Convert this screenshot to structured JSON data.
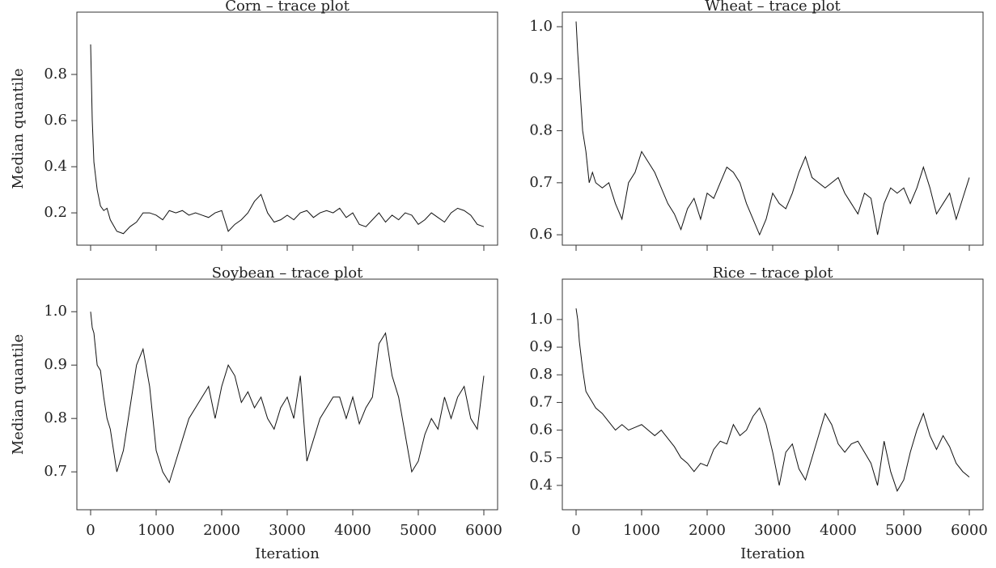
{
  "chart_data": [
    {
      "type": "line",
      "title": "Corn – trace plot",
      "ylabel": "Median quantile",
      "x": [
        0,
        25,
        50,
        100,
        150,
        200,
        250,
        300,
        400,
        500,
        600,
        700,
        800,
        900,
        1000,
        1100,
        1200,
        1300,
        1400,
        1500,
        1600,
        1700,
        1800,
        1900,
        2000,
        2100,
        2200,
        2300,
        2400,
        2500,
        2600,
        2700,
        2800,
        2900,
        3000,
        3100,
        3200,
        3300,
        3400,
        3500,
        3600,
        3700,
        3800,
        3900,
        4000,
        4100,
        4200,
        4300,
        4400,
        4500,
        4600,
        4700,
        4800,
        4900,
        5000,
        5100,
        5200,
        5300,
        5400,
        5500,
        5600,
        5700,
        5800,
        5900,
        6000
      ],
      "series": [
        {
          "color": "#111111",
          "values": [
            0.93,
            0.6,
            0.42,
            0.3,
            0.23,
            0.21,
            0.22,
            0.17,
            0.12,
            0.11,
            0.14,
            0.16,
            0.2,
            0.2,
            0.19,
            0.17,
            0.21,
            0.2,
            0.21,
            0.19,
            0.2,
            0.19,
            0.18,
            0.2,
            0.21,
            0.12,
            0.15,
            0.17,
            0.2,
            0.25,
            0.28,
            0.2,
            0.16,
            0.17,
            0.19,
            0.17,
            0.2,
            0.21,
            0.18,
            0.2,
            0.21,
            0.2,
            0.22,
            0.18,
            0.2,
            0.15,
            0.14,
            0.17,
            0.2,
            0.16,
            0.19,
            0.17,
            0.2,
            0.19,
            0.15,
            0.17,
            0.2,
            0.18,
            0.16,
            0.2,
            0.22,
            0.21,
            0.19,
            0.15,
            0.14
          ]
        }
      ],
      "xlim": [
        -210,
        6210
      ],
      "xticks": [
        0,
        1000,
        2000,
        3000,
        4000,
        5000,
        6000
      ],
      "ylim": [
        0.06,
        1.07
      ],
      "yticks": [
        0.2,
        0.4,
        0.6,
        0.8
      ]
    },
    {
      "type": "line",
      "title": "Wheat – trace plot",
      "x": [
        0,
        25,
        50,
        100,
        150,
        200,
        250,
        300,
        400,
        500,
        600,
        700,
        800,
        900,
        1000,
        1100,
        1200,
        1300,
        1400,
        1500,
        1600,
        1700,
        1800,
        1900,
        2000,
        2100,
        2200,
        2300,
        2400,
        2500,
        2600,
        2700,
        2800,
        2900,
        3000,
        3100,
        3200,
        3300,
        3400,
        3500,
        3600,
        3700,
        3800,
        3900,
        4000,
        4100,
        4200,
        4300,
        4400,
        4500,
        4600,
        4700,
        4800,
        4900,
        5000,
        5100,
        5200,
        5300,
        5400,
        5500,
        5600,
        5700,
        5800,
        5900,
        6000
      ],
      "series": [
        {
          "color": "#111111",
          "values": [
            1.01,
            0.95,
            0.9,
            0.8,
            0.76,
            0.7,
            0.72,
            0.7,
            0.69,
            0.7,
            0.66,
            0.63,
            0.7,
            0.72,
            0.76,
            0.74,
            0.72,
            0.69,
            0.66,
            0.64,
            0.61,
            0.65,
            0.67,
            0.63,
            0.68,
            0.67,
            0.7,
            0.73,
            0.72,
            0.7,
            0.66,
            0.63,
            0.6,
            0.63,
            0.68,
            0.66,
            0.65,
            0.68,
            0.72,
            0.75,
            0.71,
            0.7,
            0.69,
            0.7,
            0.71,
            0.68,
            0.66,
            0.64,
            0.68,
            0.67,
            0.6,
            0.66,
            0.69,
            0.68,
            0.69,
            0.66,
            0.69,
            0.73,
            0.69,
            0.64,
            0.66,
            0.68,
            0.63,
            0.67,
            0.71
          ]
        }
      ],
      "xlim": [
        -210,
        6210
      ],
      "xticks": [
        0,
        1000,
        2000,
        3000,
        4000,
        5000,
        6000
      ],
      "ylim": [
        0.58,
        1.028
      ],
      "yticks": [
        0.6,
        0.7,
        0.8,
        0.9,
        {
          "value": 1,
          "label": "1.0"
        }
      ]
    },
    {
      "type": "line",
      "title": "Soybean – trace plot",
      "ylabel": "Median quantile",
      "xlabel": "Iteration",
      "x": [
        0,
        25,
        50,
        100,
        150,
        200,
        250,
        300,
        400,
        500,
        600,
        700,
        800,
        900,
        1000,
        1100,
        1200,
        1300,
        1400,
        1500,
        1600,
        1700,
        1800,
        1900,
        2000,
        2100,
        2200,
        2300,
        2400,
        2500,
        2600,
        2700,
        2800,
        2900,
        3000,
        3100,
        3200,
        3300,
        3400,
        3500,
        3600,
        3700,
        3800,
        3900,
        4000,
        4100,
        4200,
        4300,
        4400,
        4500,
        4600,
        4700,
        4800,
        4900,
        5000,
        5100,
        5200,
        5300,
        5400,
        5500,
        5600,
        5700,
        5800,
        5900,
        6000
      ],
      "series": [
        {
          "color": "#111111",
          "values": [
            1.0,
            0.97,
            0.96,
            0.9,
            0.89,
            0.84,
            0.8,
            0.78,
            0.7,
            0.74,
            0.82,
            0.9,
            0.93,
            0.86,
            0.74,
            0.7,
            0.68,
            0.72,
            0.76,
            0.8,
            0.82,
            0.84,
            0.86,
            0.8,
            0.86,
            0.9,
            0.88,
            0.83,
            0.85,
            0.82,
            0.84,
            0.8,
            0.78,
            0.82,
            0.84,
            0.8,
            0.88,
            0.72,
            0.76,
            0.8,
            0.82,
            0.84,
            0.84,
            0.8,
            0.84,
            0.79,
            0.82,
            0.84,
            0.94,
            0.96,
            0.88,
            0.84,
            0.77,
            0.7,
            0.72,
            0.77,
            0.8,
            0.78,
            0.84,
            0.8,
            0.84,
            0.86,
            0.8,
            0.78,
            0.88
          ]
        }
      ],
      "xlim": [
        -210,
        6210
      ],
      "xticks": [
        0,
        1000,
        2000,
        3000,
        4000,
        5000,
        6000
      ],
      "ylim": [
        0.629,
        1.061
      ],
      "yticks": [
        0.7,
        0.8,
        0.9,
        {
          "value": 1,
          "label": "1.0"
        }
      ]
    },
    {
      "type": "line",
      "title": "Rice – trace plot",
      "xlabel": "Iteration",
      "x": [
        0,
        25,
        50,
        100,
        150,
        200,
        250,
        300,
        400,
        500,
        600,
        700,
        800,
        900,
        1000,
        1100,
        1200,
        1300,
        1400,
        1500,
        1600,
        1700,
        1800,
        1900,
        2000,
        2100,
        2200,
        2300,
        2400,
        2500,
        2600,
        2700,
        2800,
        2900,
        3000,
        3100,
        3200,
        3300,
        3400,
        3500,
        3600,
        3700,
        3800,
        3900,
        4000,
        4100,
        4200,
        4300,
        4400,
        4500,
        4600,
        4700,
        4800,
        4900,
        5000,
        5100,
        5200,
        5300,
        5400,
        5500,
        5600,
        5700,
        5800,
        5900,
        6000
      ],
      "series": [
        {
          "color": "#111111",
          "values": [
            1.04,
            1.0,
            0.92,
            0.82,
            0.74,
            0.72,
            0.7,
            0.68,
            0.66,
            0.63,
            0.6,
            0.62,
            0.6,
            0.61,
            0.62,
            0.6,
            0.58,
            0.6,
            0.57,
            0.54,
            0.5,
            0.48,
            0.45,
            0.48,
            0.47,
            0.53,
            0.56,
            0.55,
            0.62,
            0.58,
            0.6,
            0.65,
            0.68,
            0.62,
            0.52,
            0.4,
            0.52,
            0.55,
            0.46,
            0.42,
            0.5,
            0.58,
            0.66,
            0.62,
            0.55,
            0.52,
            0.55,
            0.56,
            0.52,
            0.48,
            0.4,
            0.56,
            0.45,
            0.38,
            0.42,
            0.52,
            0.6,
            0.66,
            0.58,
            0.53,
            0.58,
            0.54,
            0.48,
            0.45,
            0.43
          ]
        }
      ],
      "xlim": [
        -210,
        6210
      ],
      "xticks": [
        0,
        1000,
        2000,
        3000,
        4000,
        5000,
        6000
      ],
      "ylim": [
        0.312,
        1.146
      ],
      "yticks": [
        0.4,
        0.5,
        0.6,
        0.7,
        0.8,
        0.9,
        {
          "value": 1,
          "label": "1.0"
        }
      ]
    }
  ]
}
